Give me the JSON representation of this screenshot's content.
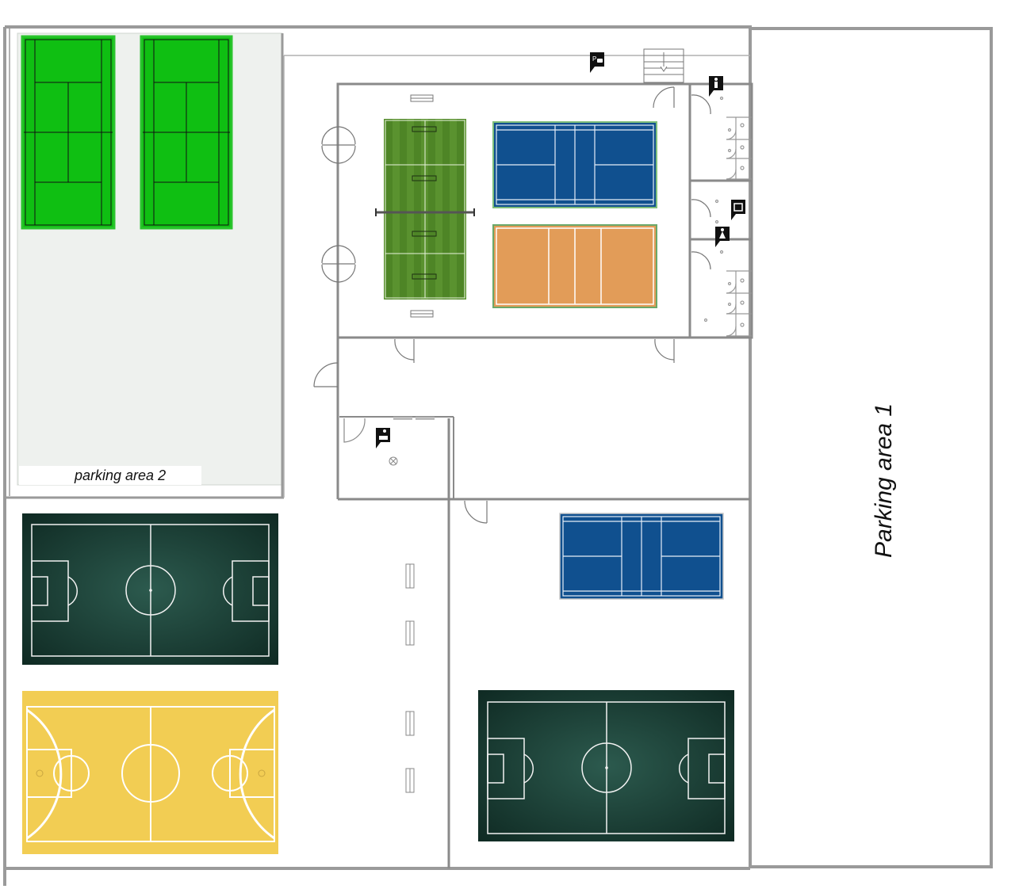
{
  "labels": {
    "parking_1": "Parking area 1",
    "parking_2": "parking area 2"
  },
  "icons": {
    "parking": "parking-icon",
    "toilet_men": "toilet-men-icon",
    "toilet_women": "toilet-women-icon",
    "locker": "locker-icon",
    "reception": "reception-icon"
  },
  "colors": {
    "tennis_green": "#0fbf12",
    "turf_green": "#4e8526",
    "badminton_blue": "#10508f",
    "volleyball_orange": "#e29c58",
    "football_dark": "#173c33",
    "basketball_yellow": "#f2cd53",
    "wall_gray": "#9a9a9a"
  }
}
